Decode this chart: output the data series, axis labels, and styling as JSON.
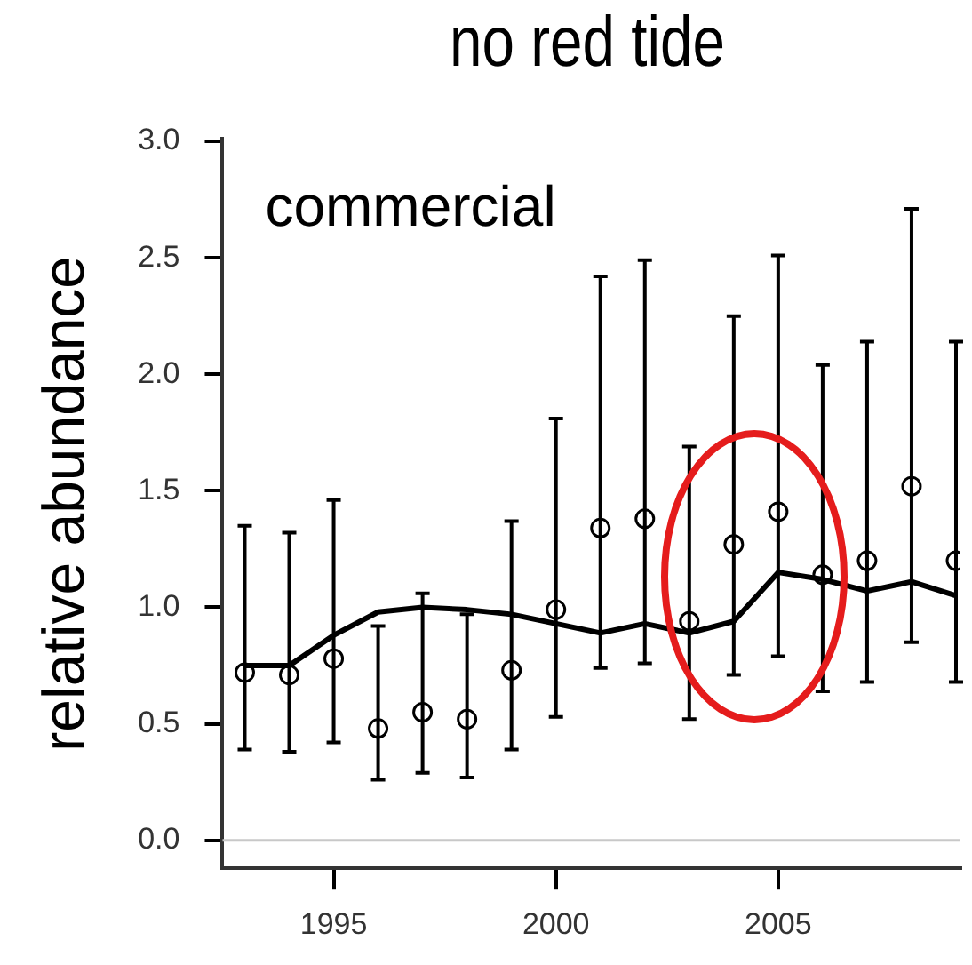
{
  "chart_data": {
    "type": "scatter",
    "title": "no red tide",
    "ylabel": "relative abundance",
    "annotations": [
      "commercial"
    ],
    "x": [
      1993,
      1994,
      1995,
      1996,
      1997,
      1998,
      1999,
      2000,
      2001,
      2002,
      2003,
      2004,
      2005,
      2006,
      2007,
      2008,
      2009
    ],
    "series": [
      {
        "color": "#000000",
        "marker": "circle",
        "values": [
          0.72,
          0.71,
          0.78,
          0.48,
          0.55,
          0.52,
          0.73,
          0.99,
          1.34,
          1.38,
          0.94,
          1.27,
          1.41,
          1.14,
          1.2,
          1.52,
          1.2
        ],
        "errors": [
          [
            0.39,
            1.35
          ],
          [
            0.38,
            1.32
          ],
          [
            0.42,
            1.46
          ],
          [
            0.26,
            0.92
          ],
          [
            0.29,
            1.06
          ],
          [
            0.27,
            0.97
          ],
          [
            0.39,
            1.37
          ],
          [
            0.53,
            1.81
          ],
          [
            0.74,
            2.42
          ],
          [
            0.76,
            2.49
          ],
          [
            0.52,
            1.69
          ],
          [
            0.71,
            2.25
          ],
          [
            0.79,
            2.51
          ],
          [
            0.64,
            2.04
          ],
          [
            0.68,
            2.14
          ],
          [
            0.85,
            2.71
          ],
          [
            0.68,
            2.14
          ]
        ]
      },
      {
        "type": "line",
        "color": "#000000",
        "marker": "none",
        "values": [
          0.75,
          0.75,
          0.88,
          0.98,
          1.0,
          0.99,
          0.97,
          0.93,
          0.89,
          0.93,
          0.89,
          0.94,
          1.15,
          1.12,
          1.07,
          1.11,
          1.05
        ]
      }
    ],
    "xlim": [
      1992.5,
      2009.1
    ],
    "xticks": [
      1995,
      2000,
      2005
    ],
    "ylim": [
      -0.12,
      3.01
    ],
    "yticks": [
      {
        "value": 0,
        "label": "0.0"
      },
      {
        "value": 0.5,
        "label": "0.5"
      },
      {
        "value": 1,
        "label": "1.0"
      },
      {
        "value": 1.5,
        "label": "1.5"
      },
      {
        "value": 2,
        "label": "2.0"
      },
      {
        "value": 2.5,
        "label": "2.5"
      },
      {
        "value": 3,
        "label": "3.0"
      }
    ],
    "ref_lines": [
      {
        "axis": "y",
        "value": 0,
        "color": "#c8c8c8"
      }
    ],
    "grid": false,
    "legend": false
  }
}
